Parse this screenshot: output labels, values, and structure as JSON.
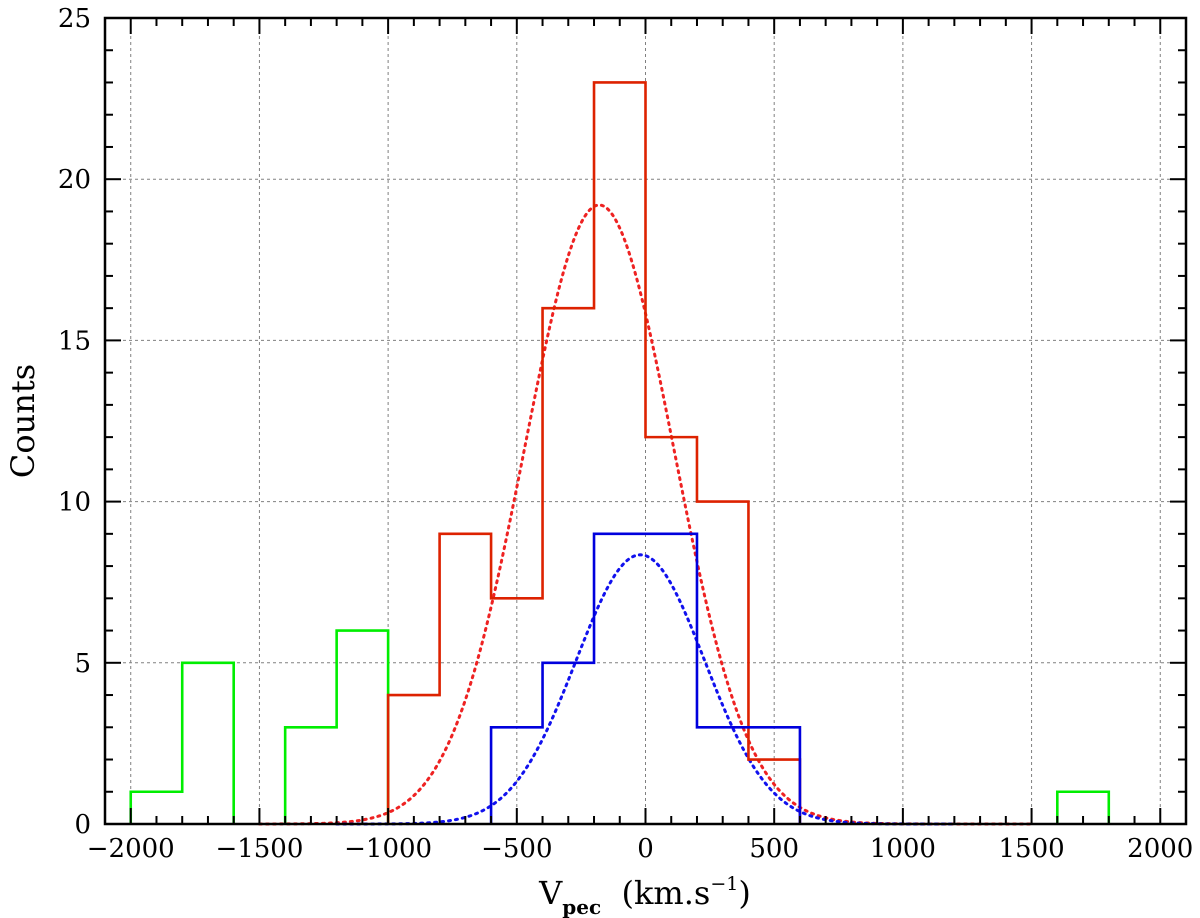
{
  "chart_data": {
    "type": "histogram",
    "xlabel": {
      "main": "V",
      "sub": "pec",
      "unit_pre": "  (km.s",
      "unit_sup": "−1",
      "unit_post": ")"
    },
    "ylabel": "Counts",
    "xlim": [
      -2100,
      2100
    ],
    "ylim": [
      0,
      25
    ],
    "x_ticks": [
      -2000,
      -1500,
      -1000,
      -500,
      0,
      500,
      1000,
      1500,
      2000
    ],
    "x_tick_labels": [
      "−2000",
      "−1500",
      "−1000",
      "−500",
      "0",
      "500",
      "1000",
      "1500",
      "2000"
    ],
    "y_ticks": [
      0,
      5,
      10,
      15,
      20,
      25
    ],
    "y_tick_labels": [
      "0",
      "5",
      "10",
      "15",
      "20",
      "25"
    ],
    "grid": true,
    "bin_edges": [
      -2000,
      -1800,
      -1600,
      -1400,
      -1200,
      -1000,
      -800,
      -600,
      -400,
      -200,
      0,
      200,
      400,
      600,
      800,
      1000,
      1200,
      1400,
      1600,
      1800
    ],
    "series": [
      {
        "kind": "histogram",
        "color": "#00ee00",
        "counts": [
          1,
          5,
          0,
          3,
          6,
          0,
          0,
          0,
          0,
          0,
          0,
          0,
          0,
          0,
          0,
          0,
          0,
          0,
          1
        ]
      },
      {
        "kind": "histogram",
        "color": "#dd2200",
        "counts": [
          0,
          0,
          0,
          0,
          0,
          4,
          9,
          7,
          16,
          23,
          12,
          10,
          2,
          0,
          0,
          0,
          0,
          0,
          0
        ]
      },
      {
        "kind": "histogram",
        "color": "#0000dd",
        "counts": [
          0,
          0,
          0,
          0,
          0,
          0,
          0,
          3,
          5,
          9,
          9,
          3,
          3,
          0,
          0,
          0,
          0,
          0,
          0
        ]
      }
    ],
    "fits": [
      {
        "kind": "gaussian",
        "color": "#ee2222",
        "mean": -180,
        "sigma": 290,
        "amplitude": 19.2,
        "x_range": [
          -1500,
          1500
        ]
      },
      {
        "kind": "gaussian",
        "color": "#1111ee",
        "mean": -20,
        "sigma": 250,
        "amplitude": 8.35,
        "x_range": [
          -1200,
          1200
        ]
      }
    ]
  }
}
